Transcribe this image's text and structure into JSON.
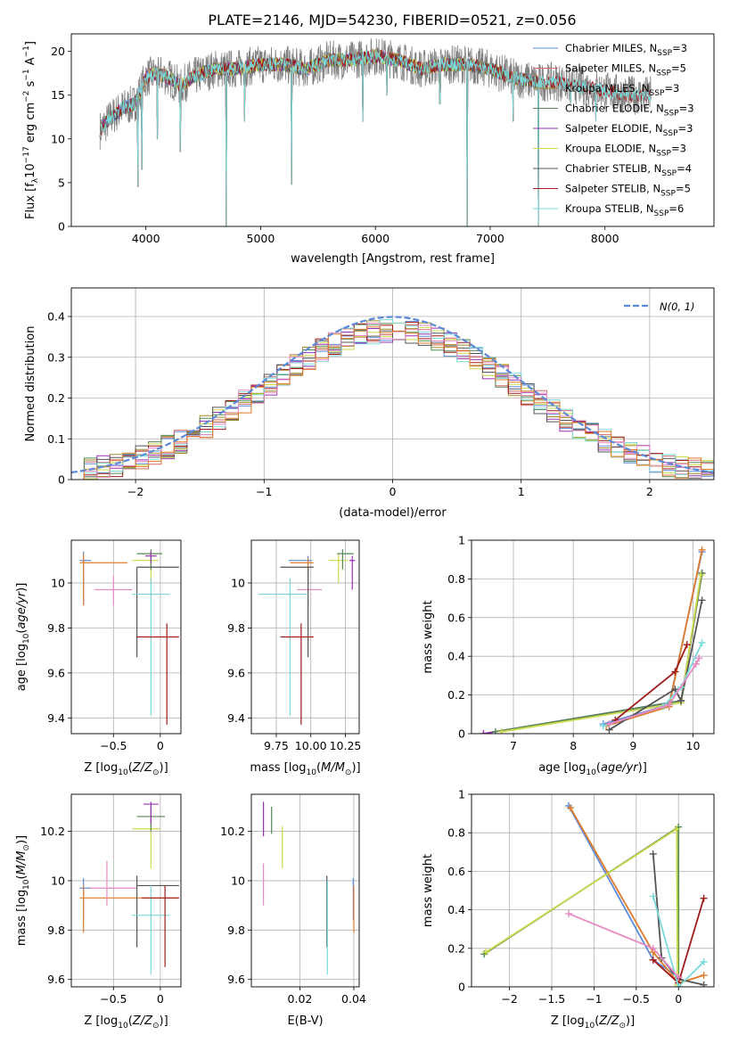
{
  "figure_title": "PLATE=2146, MJD=54230, FIBERID=0521, z=0.056",
  "colors": {
    "Chabrier MILES": "#5b8bd8",
    "Salpeter MILES": "#d26a6a",
    "Kroupa MILES": "#a08a2b",
    "Chabrier ELODIE": "#558a55",
    "Salpeter ELODIE": "#9b30b0",
    "Kroupa ELODIE": "#cbd94b",
    "Chabrier STELIB": "#555555",
    "Salpeter STELIB": "#a01a1a",
    "Kroupa STELIB": "#78dada",
    "observed": "#808080",
    "pink": "#e78ac3",
    "orange": "#e07b2b",
    "normal": "#5b8bd8"
  },
  "chart_data": [
    {
      "type": "line",
      "id": "spectrum",
      "title": "PLATE=2146, MJD=54230, FIBERID=0521, z=0.056",
      "xlabel": "wavelength [Angstrom, rest frame]",
      "ylabel": "Flux [f_λ 10^-17 erg cm^-2 s^-1 A^-1]",
      "xlim": [
        3350,
        8950
      ],
      "ylim": [
        0,
        22
      ],
      "xticks": [
        4000,
        5000,
        6000,
        7000,
        8000
      ],
      "yticks": [
        0,
        5,
        10,
        15,
        20
      ],
      "legend_position": "top-right",
      "grid": false,
      "series": [
        {
          "name": "Chabrier MILES, N_SSP=3",
          "legend_label": "Chabrier MILES, N",
          "ssp": "=3"
        },
        {
          "name": "Salpeter MILES, N_SSP=5",
          "legend_label": "Salpeter MILES, N",
          "ssp": "=5"
        },
        {
          "name": "Kroupa MILES, N_SSP=3",
          "legend_label": "Kroupa MILES, N",
          "ssp": "=3"
        },
        {
          "name": "Chabrier ELODIE, N_SSP=3",
          "legend_label": "Chabrier ELODIE, N",
          "ssp": "=3"
        },
        {
          "name": "Salpeter ELODIE, N_SSP=3",
          "legend_label": "Salpeter ELODIE, N",
          "ssp": "=3"
        },
        {
          "name": "Kroupa ELODIE, N_SSP=3",
          "legend_label": "Kroupa ELODIE, N",
          "ssp": "=3"
        },
        {
          "name": "Chabrier STELIB, N_SSP=4",
          "legend_label": "Chabrier STELIB, N",
          "ssp": "=4"
        },
        {
          "name": "Salpeter STELIB, N_SSP=5",
          "legend_label": "Salpeter STELIB, N",
          "ssp": "=5"
        },
        {
          "name": "Kroupa STELIB, N_SSP=6",
          "legend_label": "Kroupa STELIB, N",
          "ssp": "=6"
        }
      ],
      "continuum": {
        "x": [
          3600,
          3700,
          3800,
          3900,
          4000,
          4100,
          4200,
          4300,
          4400,
          4500,
          4600,
          4800,
          5000,
          5200,
          5400,
          5600,
          5800,
          6000,
          6200,
          6400,
          6600,
          6800,
          7000,
          7200,
          7400,
          7600,
          7800,
          8000,
          8200,
          8400,
          8800
        ],
        "y": [
          11.0,
          12.5,
          13.5,
          14.0,
          17.0,
          17.5,
          17.0,
          16.0,
          17.0,
          17.5,
          18.0,
          18.0,
          18.5,
          18.5,
          18.0,
          19.0,
          19.0,
          19.5,
          19.0,
          18.0,
          18.5,
          18.5,
          18.0,
          17.0,
          16.5,
          16.5,
          16.0,
          15.5,
          15.0,
          15.0,
          15.0
        ]
      },
      "dips": [
        {
          "x": 3930,
          "y": 4.5
        },
        {
          "x": 3965,
          "y": 6.5
        },
        {
          "x": 4100,
          "y": 10.0
        },
        {
          "x": 4300,
          "y": 8.5
        },
        {
          "x": 4700,
          "y": 0.0
        },
        {
          "x": 4860,
          "y": 12.0
        },
        {
          "x": 5270,
          "y": 4.8
        },
        {
          "x": 5890,
          "y": 12.0
        },
        {
          "x": 6100,
          "y": 15.0
        },
        {
          "x": 6563,
          "y": 14.0
        },
        {
          "x": 6800,
          "y": 0.0
        },
        {
          "x": 7200,
          "y": 12.0
        },
        {
          "x": 7420,
          "y": 0.0
        },
        {
          "x": 7700,
          "y": 14.0
        },
        {
          "x": 7920,
          "y": 12.0
        }
      ]
    },
    {
      "type": "line",
      "id": "residuals",
      "xlabel": "(data-model)/error",
      "ylabel": "Normed distribution",
      "xlim": [
        -2.5,
        2.5
      ],
      "ylim": [
        0,
        0.47
      ],
      "xticks": [
        -2,
        -1,
        0,
        1,
        2
      ],
      "yticks": [
        0.0,
        0.1,
        0.2,
        0.3,
        0.4
      ],
      "grid": true,
      "legend_position": "top-right",
      "normal_label": "N(0, 1)",
      "bin_width": 0.1,
      "bins_start": -2.5
    },
    {
      "type": "scatter",
      "id": "age_vs_Z",
      "xlabel": "Z [log10(Z/Z⊙)]",
      "ylabel": "age [log10(age/yr)]",
      "xlim": [
        -0.95,
        0.22
      ],
      "ylim": [
        9.33,
        10.19
      ],
      "xticks": [
        -0.5,
        0.0
      ],
      "yticks": [
        9.4,
        9.6,
        9.8,
        10.0
      ],
      "grid": true,
      "points": [
        {
          "s": "Chabrier MILES",
          "x": -0.82,
          "y": 10.1,
          "xe": [
            -0.86,
            -0.74
          ],
          "ye": [
            9.9,
            10.14
          ]
        },
        {
          "s": "orange",
          "x": -0.82,
          "y": 10.09,
          "xe": [
            -0.86,
            -0.35
          ],
          "ye": [
            9.9,
            10.13
          ]
        },
        {
          "s": "pink",
          "x": -0.5,
          "y": 9.97,
          "xe": [
            -0.7,
            -0.3
          ],
          "ye": [
            9.9,
            10.03
          ]
        },
        {
          "s": "Kroupa ELODIE",
          "x": -0.1,
          "y": 10.1,
          "xe": [
            -0.3,
            -0.02
          ],
          "ye": [
            10.0,
            10.13
          ]
        },
        {
          "s": "Chabrier ELODIE",
          "x": -0.1,
          "y": 10.13,
          "xe": [
            -0.25,
            0.02
          ],
          "ye": [
            10.06,
            10.15
          ]
        },
        {
          "s": "Chabrier STELIB",
          "x": -0.25,
          "y": 10.07,
          "xe": [
            -0.25,
            0.2
          ],
          "ye": [
            9.67,
            10.07
          ]
        },
        {
          "s": "Kroupa STELIB",
          "x": -0.1,
          "y": 9.95,
          "xe": [
            -0.3,
            0.1
          ],
          "ye": [
            9.41,
            10.02
          ]
        },
        {
          "s": "Salpeter STELIB",
          "x": 0.07,
          "y": 9.76,
          "xe": [
            -0.25,
            0.2
          ],
          "ye": [
            9.37,
            9.82
          ]
        },
        {
          "s": "Salpeter ELODIE",
          "x": -0.1,
          "y": 10.12,
          "xe": [
            -0.16,
            -0.04
          ],
          "ye": [
            10.09,
            10.14
          ]
        }
      ]
    },
    {
      "type": "scatter",
      "id": "age_vs_mass",
      "xlabel": "mass [log10(M/M⊙)]",
      "ylabel": "",
      "xlim": [
        9.57,
        10.35
      ],
      "ylim": [
        9.33,
        10.19
      ],
      "xticks": [
        9.75,
        10.0,
        10.25
      ],
      "xtick_labels": [
        "9.75",
        "10.00",
        "10.25"
      ],
      "yticks": [
        9.4,
        9.6,
        9.8,
        10.0
      ],
      "grid": true,
      "points": [
        {
          "s": "Chabrier MILES",
          "x": 9.98,
          "y": 10.1,
          "xe": [
            9.84,
            10.01
          ],
          "ye": [
            9.98,
            10.12
          ]
        },
        {
          "s": "orange",
          "x": 9.98,
          "y": 10.09,
          "xe": [
            9.85,
            10.02
          ],
          "ye": [
            10.06,
            10.11
          ]
        },
        {
          "s": "pink",
          "x": 9.98,
          "y": 9.97,
          "xe": [
            9.9,
            10.08
          ],
          "ye": [
            9.9,
            10.03
          ]
        },
        {
          "s": "Kroupa ELODIE",
          "x": 10.2,
          "y": 10.1,
          "xe": [
            10.13,
            10.27
          ],
          "ye": [
            10.0,
            10.13
          ]
        },
        {
          "s": "Chabrier ELODIE",
          "x": 10.23,
          "y": 10.13,
          "xe": [
            10.19,
            10.31
          ],
          "ye": [
            10.06,
            10.15
          ]
        },
        {
          "s": "Salpeter ELODIE",
          "x": 10.3,
          "y": 10.1,
          "xe": [
            10.28,
            10.32
          ],
          "ye": [
            9.97,
            10.12
          ]
        },
        {
          "s": "Chabrier STELIB",
          "x": 9.98,
          "y": 10.07,
          "xe": [
            9.78,
            10.02
          ],
          "ye": [
            9.67,
            10.07
          ]
        },
        {
          "s": "Kroupa STELIB",
          "x": 9.85,
          "y": 9.95,
          "xe": [
            9.62,
            9.98
          ],
          "ye": [
            9.41,
            10.02
          ]
        },
        {
          "s": "Salpeter STELIB",
          "x": 9.93,
          "y": 9.76,
          "xe": [
            9.78,
            10.02
          ],
          "ye": [
            9.37,
            9.82
          ]
        }
      ]
    },
    {
      "type": "line",
      "id": "weight_vs_age",
      "xlabel": "age [log10(age/yr)]",
      "ylabel": "mass weight",
      "xlim": [
        6.3,
        10.35
      ],
      "ylim": [
        0,
        1.0
      ],
      "xticks": [
        7,
        8,
        9,
        10
      ],
      "yticks": [
        0.0,
        0.2,
        0.4,
        0.6,
        0.8,
        1.0
      ],
      "grid": true,
      "series": [
        {
          "s": "Chabrier MILES",
          "x": [
            8.5,
            9.6,
            10.15
          ],
          "y": [
            0.05,
            0.15,
            0.94
          ]
        },
        {
          "s": "orange",
          "x": [
            8.55,
            9.6,
            10.15
          ],
          "y": [
            0.04,
            0.14,
            0.95
          ]
        },
        {
          "s": "Salpeter ELODIE",
          "x": [
            6.5,
            9.8,
            10.15
          ],
          "y": [
            0.0,
            0.17,
            0.83
          ]
        },
        {
          "s": "Chabrier ELODIE",
          "x": [
            6.7,
            9.8,
            10.15
          ],
          "y": [
            0.01,
            0.17,
            0.83
          ]
        },
        {
          "s": "Kroupa ELODIE",
          "x": [
            6.8,
            9.8,
            10.13
          ],
          "y": [
            0.01,
            0.16,
            0.82
          ]
        },
        {
          "s": "Chabrier STELIB",
          "x": [
            8.6,
            9.7,
            9.8,
            10.15
          ],
          "y": [
            0.02,
            0.23,
            0.17,
            0.69
          ]
        },
        {
          "s": "Salpeter STELIB",
          "x": [
            8.7,
            9.7,
            9.9
          ],
          "y": [
            0.07,
            0.32,
            0.46
          ]
        },
        {
          "s": "Kroupa STELIB",
          "x": [
            8.5,
            9.5,
            9.8,
            10.15
          ],
          "y": [
            0.04,
            0.14,
            0.24,
            0.47
          ]
        },
        {
          "s": "pink",
          "x": [
            8.6,
            9.6,
            10.05,
            10.1
          ],
          "y": [
            0.05,
            0.15,
            0.36,
            0.39
          ]
        }
      ]
    },
    {
      "type": "scatter",
      "id": "mass_vs_Z",
      "xlabel": "Z [log10(Z/Z⊙)]",
      "ylabel": "mass [log10(M/M⊙)]",
      "xlim": [
        -0.95,
        0.22
      ],
      "ylim": [
        9.57,
        10.35
      ],
      "xticks": [
        -0.5,
        0.0
      ],
      "yticks": [
        9.6,
        9.8,
        10.0,
        10.2
      ],
      "grid": true,
      "points": [
        {
          "s": "Chabrier MILES",
          "x": -0.82,
          "y": 9.97,
          "xe": [
            -0.86,
            -0.74
          ],
          "ye": [
            9.84,
            10.01
          ]
        },
        {
          "s": "orange",
          "x": -0.82,
          "y": 9.93,
          "xe": [
            -0.86,
            0.2
          ],
          "ye": [
            9.79,
            9.98
          ]
        },
        {
          "s": "pink",
          "x": -0.57,
          "y": 9.97,
          "xe": [
            -0.75,
            -0.25
          ],
          "ye": [
            9.9,
            10.08
          ]
        },
        {
          "s": "Kroupa ELODIE",
          "x": -0.1,
          "y": 10.21,
          "xe": [
            -0.3,
            0.0
          ],
          "ye": [
            10.05,
            10.25
          ]
        },
        {
          "s": "Chabrier ELODIE",
          "x": -0.1,
          "y": 10.26,
          "xe": [
            -0.25,
            0.05
          ],
          "ye": [
            10.2,
            10.3
          ]
        },
        {
          "s": "Salpeter ELODIE",
          "x": -0.1,
          "y": 10.31,
          "xe": [
            -0.18,
            -0.02
          ],
          "ye": [
            10.23,
            10.32
          ]
        },
        {
          "s": "Chabrier STELIB",
          "x": -0.25,
          "y": 9.98,
          "xe": [
            -0.25,
            0.2
          ],
          "ye": [
            9.73,
            10.02
          ]
        },
        {
          "s": "Kroupa STELIB",
          "x": -0.1,
          "y": 9.86,
          "xe": [
            -0.3,
            0.1
          ],
          "ye": [
            9.62,
            9.98
          ]
        },
        {
          "s": "Salpeter STELIB",
          "x": 0.05,
          "y": 9.93,
          "xe": [
            -0.2,
            0.2
          ],
          "ye": [
            9.65,
            9.98
          ]
        }
      ]
    },
    {
      "type": "scatter",
      "id": "mass_vs_EBV",
      "xlabel": "E(B-V)",
      "ylabel": "",
      "xlim": [
        0.002,
        0.042
      ],
      "ylim": [
        9.57,
        10.35
      ],
      "xticks": [
        0.02,
        0.04
      ],
      "yticks": [
        9.6,
        9.8,
        10.0,
        10.2
      ],
      "grid": true,
      "points": [
        {
          "s": "Salpeter ELODIE",
          "x": 0.0065,
          "y": 10.25,
          "xe": [
            0.0065,
            0.0065
          ],
          "ye": [
            10.18,
            10.32
          ]
        },
        {
          "s": "pink",
          "x": 0.0065,
          "y": 9.99,
          "xe": [
            0.0065,
            0.0065
          ],
          "ye": [
            9.9,
            10.07
          ]
        },
        {
          "s": "Chabrier ELODIE",
          "x": 0.0095,
          "y": 10.25,
          "xe": [
            0.0095,
            0.0095
          ],
          "ye": [
            10.19,
            10.3
          ]
        },
        {
          "s": "Kroupa ELODIE",
          "x": 0.0135,
          "y": 10.15,
          "xe": [
            0.0135,
            0.0135
          ],
          "ye": [
            10.05,
            10.22
          ]
        },
        {
          "s": "Chabrier STELIB",
          "x": 0.03,
          "y": 9.85,
          "xe": [
            0.03,
            0.03
          ],
          "ye": [
            9.73,
            10.02
          ]
        },
        {
          "s": "Kroupa STELIB",
          "x": 0.0302,
          "y": 9.82,
          "xe": [
            0.0302,
            0.0302
          ],
          "ye": [
            9.62,
            10.0
          ]
        },
        {
          "s": "Chabrier MILES",
          "x": 0.0398,
          "y": 9.97,
          "xe": [
            0.0398,
            0.0398
          ],
          "ye": [
            9.84,
            10.01
          ]
        },
        {
          "s": "orange",
          "x": 0.04,
          "y": 9.93,
          "xe": [
            0.04,
            0.04
          ],
          "ye": [
            9.79,
            9.98
          ]
        }
      ]
    },
    {
      "type": "line",
      "id": "weight_vs_Z",
      "xlabel": "Z [log10(Z/Z⊙)]",
      "ylabel": "mass weight",
      "xlim": [
        -2.45,
        0.42
      ],
      "ylim": [
        0,
        1.0
      ],
      "xticks": [
        -2.0,
        -1.5,
        -1.0,
        -0.5,
        0.0
      ],
      "yticks": [
        0.0,
        0.2,
        0.4,
        0.6,
        0.8,
        1.0
      ],
      "grid": true,
      "series": [
        {
          "s": "Chabrier MILES",
          "x": [
            -1.3,
            -0.3,
            0.0
          ],
          "y": [
            0.94,
            0.14,
            0.05
          ]
        },
        {
          "s": "orange",
          "x": [
            -1.28,
            -0.3,
            0.0,
            0.3
          ],
          "y": [
            0.93,
            0.18,
            0.02,
            0.06
          ]
        },
        {
          "s": "Chabrier ELODIE",
          "x": [
            -2.3,
            0.0,
            0.0
          ],
          "y": [
            0.17,
            0.83,
            0.0
          ]
        },
        {
          "s": "Kroupa ELODIE",
          "x": [
            -2.28,
            -0.02,
            -0.01
          ],
          "y": [
            0.18,
            0.82,
            0.01
          ]
        },
        {
          "s": "Chabrier STELIB",
          "x": [
            -0.3,
            -0.2,
            0.0,
            0.3
          ],
          "y": [
            0.69,
            0.15,
            0.04,
            0.01
          ]
        },
        {
          "s": "Salpeter STELIB",
          "x": [
            -0.3,
            0.0,
            0.3
          ],
          "y": [
            0.14,
            0.02,
            0.46
          ]
        },
        {
          "s": "Kroupa STELIB",
          "x": [
            -0.3,
            0.0,
            0.3
          ],
          "y": [
            0.47,
            0.0,
            0.13
          ]
        },
        {
          "s": "pink",
          "x": [
            -1.3,
            -0.3,
            0.0
          ],
          "y": [
            0.38,
            0.2,
            0.05
          ]
        }
      ]
    }
  ]
}
